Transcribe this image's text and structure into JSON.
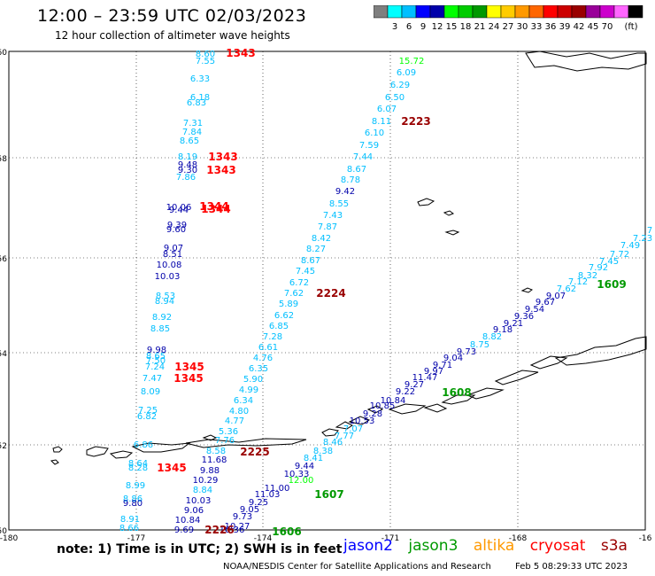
{
  "header": {
    "title": "12:00 – 23:59 UTC 02/03/2023",
    "subtitle": "12 hour collection of altimeter wave heights"
  },
  "colorbar": {
    "colors": [
      "#7f7f7f",
      "#00ffff",
      "#00bfff",
      "#0000ff",
      "#0000aa",
      "#00ff00",
      "#00cc00",
      "#009900",
      "#ffff00",
      "#ffcc00",
      "#ff9900",
      "#ff6600",
      "#ff0000",
      "#cc0000",
      "#990000",
      "#990099",
      "#cc00cc",
      "#ff66ff",
      "#000000"
    ],
    "ticks": [
      "3",
      "6",
      "9",
      "12",
      "15",
      "18",
      "21",
      "24",
      "27",
      "30",
      "33",
      "36",
      "39",
      "42",
      "45",
      "70"
    ],
    "unit": "(ft)"
  },
  "axes": {
    "lat_ticks": [
      "60",
      "58",
      "56",
      "54",
      "52",
      "50"
    ],
    "lon_ticks": [
      "-180",
      "-177",
      "-174",
      "-171",
      "-168",
      "-16"
    ]
  },
  "map": {
    "coastlines": "Aleutian Islands and Alaska Peninsula coastline",
    "tracks": [
      {
        "id": "1343",
        "color": "#ff0000"
      },
      {
        "id": "1344",
        "color": "#ff0000"
      },
      {
        "id": "1345",
        "color": "#ff0000"
      },
      {
        "id": "2223",
        "color": "#990000"
      },
      {
        "id": "2224",
        "color": "#990000"
      },
      {
        "id": "2225",
        "color": "#990000"
      },
      {
        "id": "2226",
        "color": "#990000"
      },
      {
        "id": "1606",
        "color": "#009900"
      },
      {
        "id": "1607",
        "color": "#009900"
      },
      {
        "id": "1608",
        "color": "#009900"
      },
      {
        "id": "1609",
        "color": "#009900"
      }
    ]
  },
  "footer": {
    "note": "note:  1) Time is in UTC;  2) SWH is in feet",
    "legend": [
      {
        "label": "jason2",
        "color": "#0000ff"
      },
      {
        "label": "jason3",
        "color": "#009900"
      },
      {
        "label": "altika",
        "color": "#ff9900"
      },
      {
        "label": "cryosat",
        "color": "#ff0000"
      },
      {
        "label": "s3a",
        "color": "#990000"
      }
    ],
    "credit": "NOAA/NESDIS Center for Satellite Applications and Research",
    "timestamp": "Feb  5 08:29:33 UTC 2023"
  }
}
